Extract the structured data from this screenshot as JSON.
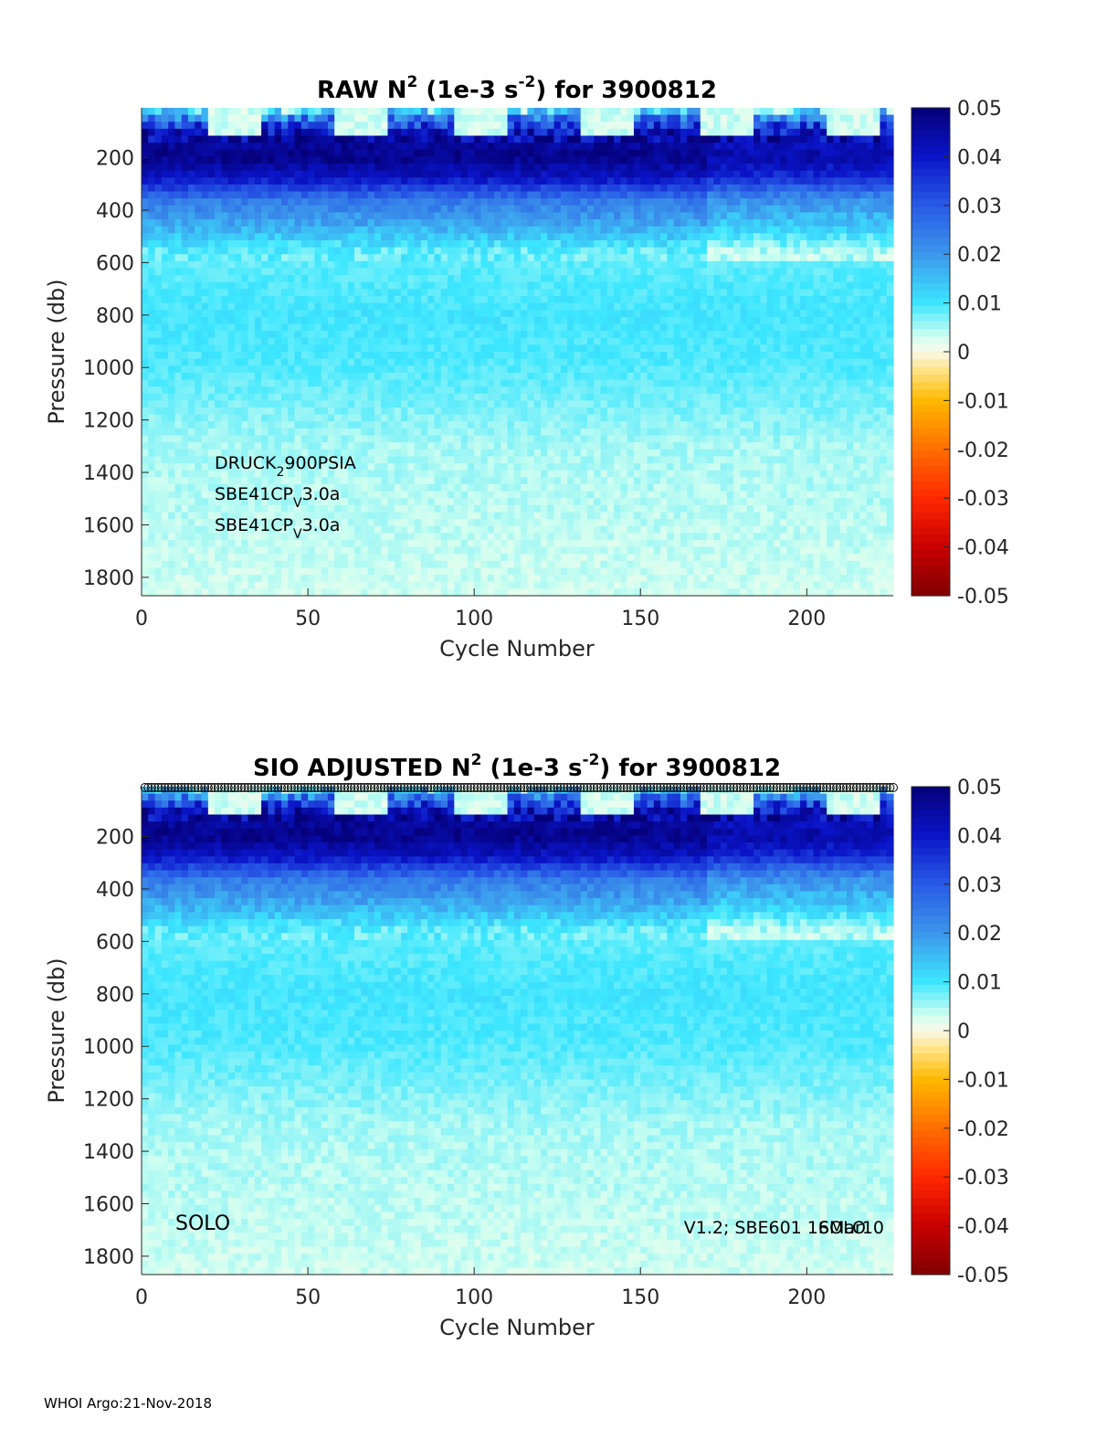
{
  "footer": "WHOI Argo:21-Nov-2018",
  "colorbar": {
    "ticks": [
      "0.05",
      "0.04",
      "0.03",
      "0.02",
      "0.01",
      "0",
      "-0.01",
      "-0.02",
      "-0.03",
      "-0.04",
      "-0.05"
    ],
    "range": [
      -0.05,
      0.05
    ],
    "colormap": "blue-cyan-white-yellow-red"
  },
  "chart_data": [
    {
      "type": "heatmap",
      "title": {
        "pre": "RAW N",
        "sup1": "2",
        "mid": " (1e-3 s",
        "sup2": "-2",
        "post": ") for 3900812"
      },
      "xlabel": "Cycle Number",
      "ylabel": "Pressure (db)",
      "xlim": [
        0,
        226
      ],
      "ylim": [
        1870,
        10
      ],
      "xticks": [
        "0",
        "50",
        "100",
        "150",
        "200"
      ],
      "yticks": [
        "200",
        "400",
        "600",
        "800",
        "1000",
        "1200",
        "1400",
        "1600",
        "1800"
      ],
      "annotations": [
        {
          "base": "DRUCK",
          "sub": "2",
          "rest": "900PSIA"
        },
        {
          "base": "SBE41CP",
          "sub": "V",
          "rest": "3.0a"
        },
        {
          "base": "SBE41CP",
          "sub": "V",
          "rest": "3.0a"
        }
      ],
      "profile": [
        {
          "p": 10,
          "v": 0.005
        },
        {
          "p": 60,
          "v": 0.03
        },
        {
          "p": 120,
          "v": 0.045
        },
        {
          "p": 200,
          "v": 0.048
        },
        {
          "p": 280,
          "v": 0.04
        },
        {
          "p": 360,
          "v": 0.025
        },
        {
          "p": 450,
          "v": 0.018
        },
        {
          "p": 560,
          "v": 0.008
        },
        {
          "p": 800,
          "v": 0.01
        },
        {
          "p": 1000,
          "v": 0.009
        },
        {
          "p": 1300,
          "v": 0.005
        },
        {
          "p": 1600,
          "v": 0.004
        },
        {
          "p": 1870,
          "v": 0.003
        }
      ]
    },
    {
      "type": "heatmap",
      "title": {
        "pre": "SIO  ADJUSTED N",
        "sup1": "2",
        "mid": " (1e-3 s",
        "sup2": "-2",
        "post": ") for 3900812"
      },
      "xlabel": "Cycle Number",
      "ylabel": "Pressure (db)",
      "xlim": [
        0,
        226
      ],
      "ylim": [
        1870,
        10
      ],
      "xticks": [
        "0",
        "50",
        "100",
        "150",
        "200"
      ],
      "yticks": [
        "200",
        "400",
        "600",
        "800",
        "1000",
        "1200",
        "1400",
        "1600",
        "1800"
      ],
      "labels": {
        "left": "SOLO",
        "right_a": "V1.2; SBE601 16Mar10",
        "right_b": "SOLO"
      },
      "qc_markers": "circles along top",
      "profile": [
        {
          "p": 10,
          "v": 0.005
        },
        {
          "p": 60,
          "v": 0.03
        },
        {
          "p": 120,
          "v": 0.045
        },
        {
          "p": 200,
          "v": 0.048
        },
        {
          "p": 280,
          "v": 0.04
        },
        {
          "p": 360,
          "v": 0.025
        },
        {
          "p": 450,
          "v": 0.018
        },
        {
          "p": 560,
          "v": 0.008
        },
        {
          "p": 800,
          "v": 0.01
        },
        {
          "p": 1000,
          "v": 0.009
        },
        {
          "p": 1300,
          "v": 0.005
        },
        {
          "p": 1600,
          "v": 0.004
        },
        {
          "p": 1870,
          "v": 0.003
        }
      ]
    }
  ]
}
